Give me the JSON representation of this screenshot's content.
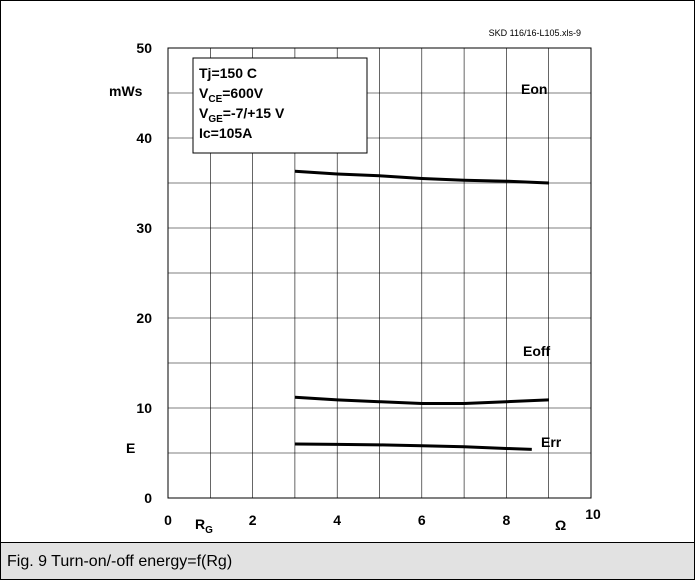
{
  "chart_data": {
    "type": "line",
    "reference": "SKD 116/16-L105.xls-9",
    "ylabel_unit": "mWs",
    "ylabel": "E",
    "xlabel": "R",
    "xlabel_sub": "G",
    "xunit": "Ω",
    "xlim": [
      0,
      10
    ],
    "ylim": [
      0,
      50
    ],
    "xticks": [
      "0",
      "2",
      "4",
      "6",
      "8",
      "10"
    ],
    "yticks": [
      "0",
      "10",
      "20",
      "30",
      "40",
      "50"
    ],
    "grid": true,
    "conditions": [
      {
        "main": "Tj=150 C",
        "sub": "",
        "rest": ""
      },
      {
        "main": "V",
        "sub": "CE",
        "rest": "=600V"
      },
      {
        "main": "V",
        "sub": "GE",
        "rest": "=-7/+15 V"
      },
      {
        "main": "Ic=105A",
        "sub": "",
        "rest": ""
      }
    ],
    "series": [
      {
        "name": "Eon",
        "x": [
          3,
          4,
          5,
          6,
          7,
          8,
          9
        ],
        "values": [
          36.3,
          36.0,
          35.8,
          35.5,
          35.3,
          35.2,
          35.0
        ]
      },
      {
        "name": "Eoff",
        "x": [
          3,
          4,
          5,
          6,
          7,
          8,
          9
        ],
        "values": [
          11.2,
          10.9,
          10.7,
          10.5,
          10.5,
          10.7,
          10.9
        ]
      },
      {
        "name": "Err",
        "x": [
          3,
          4,
          5,
          6,
          7,
          8,
          8.6
        ],
        "values": [
          6.0,
          5.95,
          5.9,
          5.8,
          5.7,
          5.5,
          5.4
        ]
      }
    ]
  },
  "caption": "Fig. 9 Turn-on/-off energy=f(Rg)"
}
